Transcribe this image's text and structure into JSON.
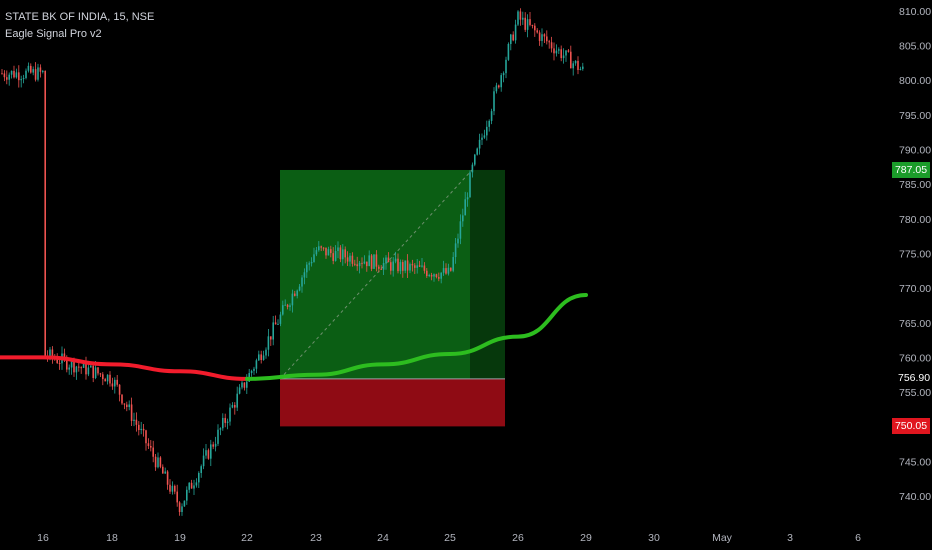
{
  "header": {
    "symbol_line": "STATE BK OF INDIA, 15, NSE",
    "indicator_line": "Eagle Signal Pro v2"
  },
  "colors": {
    "background": "#000000",
    "up_candle": "#26a69a",
    "down_candle": "#ef5350",
    "ma_bull": "#2dbd1f",
    "ma_bear": "#f21c2c",
    "profit_zone": "#0b5e14",
    "loss_zone": "#8f0b14",
    "badge_green": "#1b9c2a",
    "badge_red": "#e0161f"
  },
  "badges": {
    "take_profit": "787.05",
    "entry": "756.90",
    "stop_loss": "750.05"
  },
  "chart_data": {
    "type": "candlestick",
    "title": "STATE BK OF INDIA, 15, NSE",
    "ylim": [
      737,
      811
    ],
    "y_ticks": [
      "810.00",
      "805.00",
      "800.00",
      "795.00",
      "790.00",
      "785.00",
      "780.00",
      "775.00",
      "770.00",
      "765.00",
      "760.00",
      "755.00",
      "745.00",
      "740.00"
    ],
    "x_ticks": [
      "16",
      "18",
      "19",
      "22",
      "23",
      "24",
      "25",
      "26",
      "29",
      "30",
      "May",
      "3",
      "6"
    ],
    "grid": false,
    "price_path": [
      {
        "session": "16",
        "close": 760.5
      },
      {
        "session": "18",
        "close": 757.0
      },
      {
        "session": "19",
        "close": 738.5
      },
      {
        "session": "22",
        "close": 756.9
      },
      {
        "session": "23",
        "close": 775.5
      },
      {
        "session": "24",
        "close": 773.5
      },
      {
        "session": "25",
        "close": 772.0
      },
      {
        "session": "25-late",
        "close": 787.0
      },
      {
        "session": "26",
        "close": 809.0
      },
      {
        "session": "29",
        "close": 801.0
      }
    ],
    "moving_average": [
      {
        "session": "16",
        "value": 760.0
      },
      {
        "session": "18",
        "value": 759.0
      },
      {
        "session": "19",
        "value": 758.0
      },
      {
        "session": "22",
        "value": 756.9
      },
      {
        "session": "23",
        "value": 757.5
      },
      {
        "session": "24",
        "value": 759.0
      },
      {
        "session": "25",
        "value": 760.5
      },
      {
        "session": "26",
        "value": 763.0
      },
      {
        "session": "29",
        "value": 769.0
      }
    ],
    "position": {
      "entry": 756.9,
      "take_profit": 787.05,
      "stop_loss": 750.05,
      "start_session": "22-late",
      "end_session": "26"
    }
  }
}
